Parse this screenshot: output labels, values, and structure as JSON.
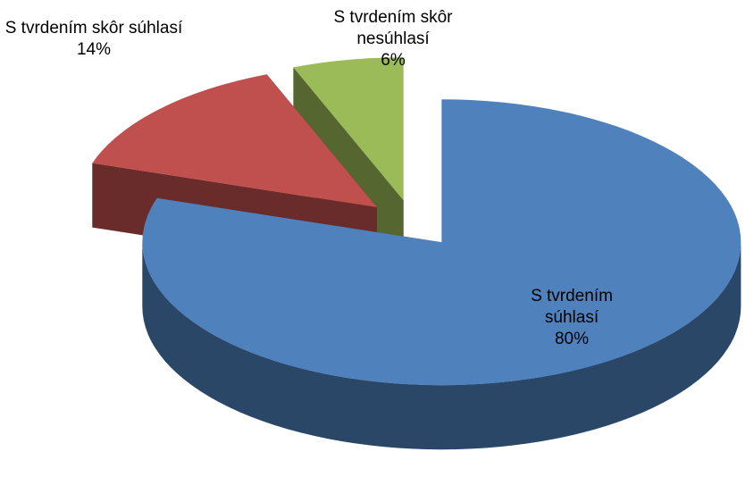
{
  "chart_data": {
    "type": "pie3d",
    "categories": [
      "S tvrdením súhlasí",
      "S tvrdením skôr súhlasí",
      "S tvrdením skôr nesúhlasí"
    ],
    "values": [
      80,
      14,
      6
    ],
    "value_labels": [
      "80%",
      "14%",
      "6%"
    ],
    "colors": [
      "#4f81bd",
      "#c0504d",
      "#9bbb59"
    ]
  }
}
